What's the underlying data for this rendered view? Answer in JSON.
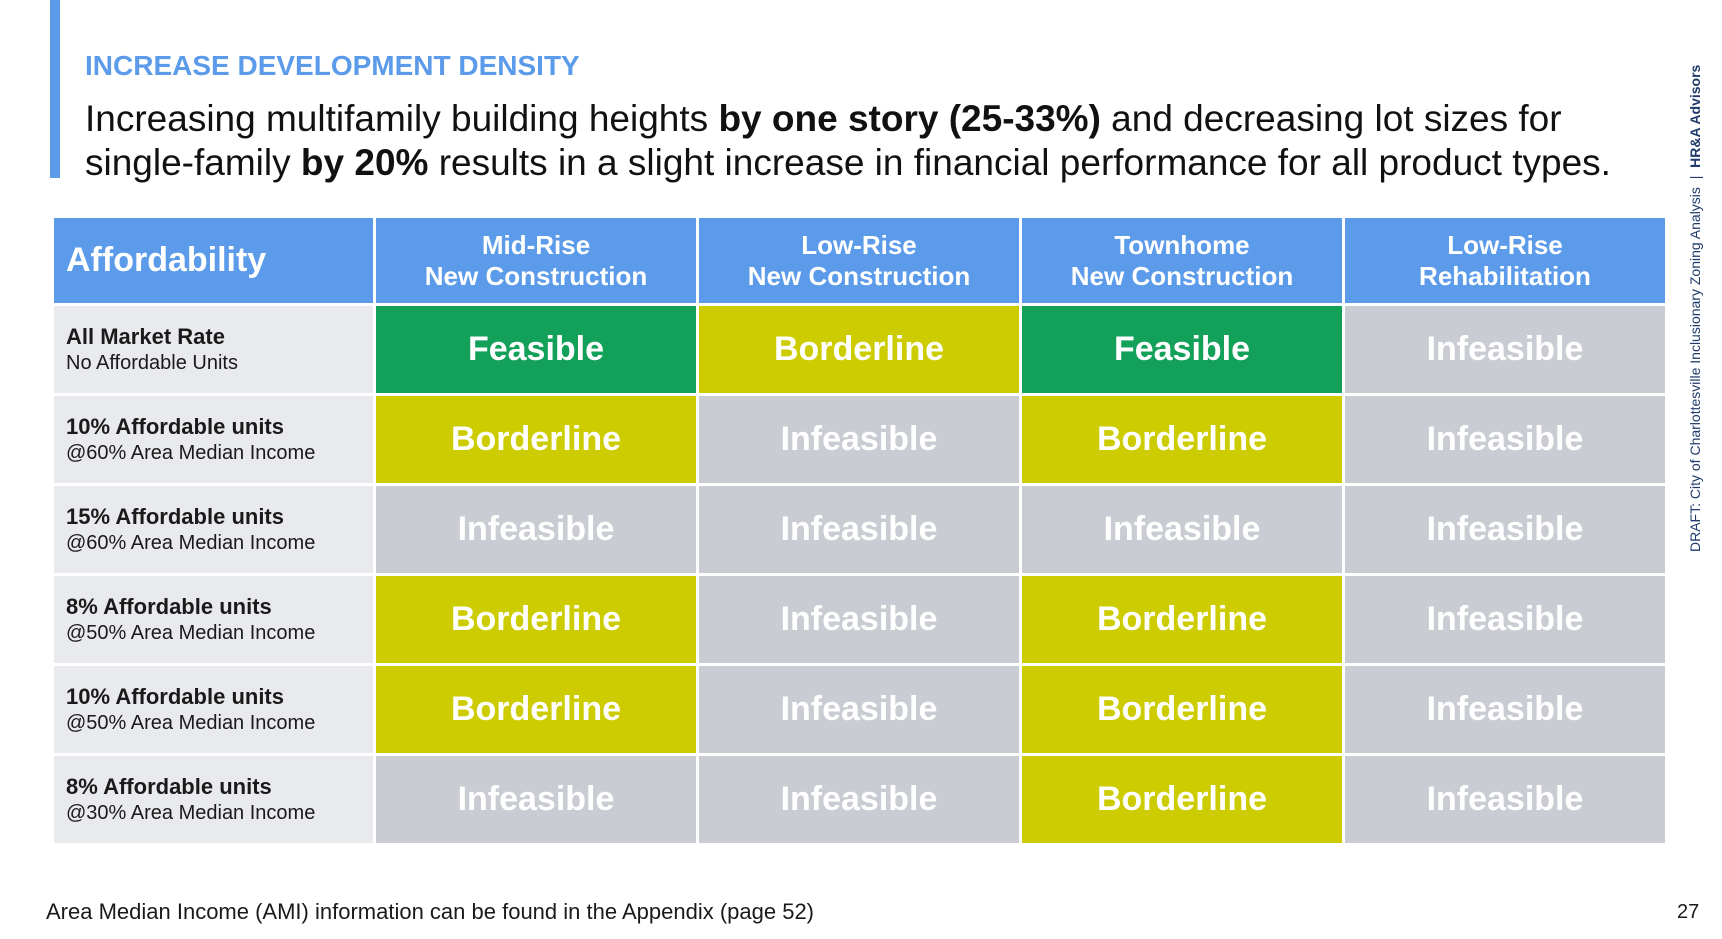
{
  "header": {
    "kicker": "INCREASE DEVELOPMENT DENSITY",
    "title_lines": [
      [
        {
          "text": "Increasing multifamily building heights ",
          "bold": false
        },
        {
          "text": "by one story (25-33%)",
          "bold": true
        },
        {
          "text": " and decreasing lot sizes for",
          "bold": false
        }
      ],
      [
        {
          "text": "single-family ",
          "bold": false
        },
        {
          "text": "by 20%",
          "bold": true
        },
        {
          "text": " results in a slight increase in financial performance for all product types.",
          "bold": false
        }
      ]
    ]
  },
  "table": {
    "corner": "Affordability",
    "columns": [
      [
        "Mid-Rise",
        "New Construction"
      ],
      [
        "Low-Rise",
        "New Construction"
      ],
      [
        "Townhome",
        "New Construction"
      ],
      [
        "Low-Rise",
        "Rehabilitation"
      ]
    ],
    "rows": [
      {
        "label": "All Market Rate",
        "sublabel": "No Affordable Units",
        "cells": [
          {
            "text": "Feasible",
            "color": "#13a15a"
          },
          {
            "text": "Borderline",
            "color": "#cccc00"
          },
          {
            "text": "Feasible",
            "color": "#13a15a"
          },
          {
            "text": "Infeasible",
            "color": "#c9ccd3"
          }
        ]
      },
      {
        "label": "10% Affordable units",
        "sublabel": "@60% Area Median Income",
        "cells": [
          {
            "text": "Borderline",
            "color": "#cccc00"
          },
          {
            "text": "Infeasible",
            "color": "#c9ccd3"
          },
          {
            "text": "Borderline",
            "color": "#cccc00"
          },
          {
            "text": "Infeasible",
            "color": "#c9ccd3"
          }
        ]
      },
      {
        "label": "15% Affordable units",
        "sublabel": "@60% Area Median Income",
        "cells": [
          {
            "text": "Infeasible",
            "color": "#c9ccd3"
          },
          {
            "text": "Infeasible",
            "color": "#c9ccd3"
          },
          {
            "text": "Infeasible",
            "color": "#c9ccd3"
          },
          {
            "text": "Infeasible",
            "color": "#c9ccd3"
          }
        ]
      },
      {
        "label": "8% Affordable units",
        "sublabel": "@50% Area Median Income",
        "cells": [
          {
            "text": "Borderline",
            "color": "#cccc00"
          },
          {
            "text": "Infeasible",
            "color": "#c9ccd3"
          },
          {
            "text": "Borderline",
            "color": "#cccc00"
          },
          {
            "text": "Infeasible",
            "color": "#c9ccd3"
          }
        ]
      },
      {
        "label": "10% Affordable units",
        "sublabel": "@50% Area Median Income",
        "cells": [
          {
            "text": "Borderline",
            "color": "#cccc00"
          },
          {
            "text": "Infeasible",
            "color": "#c9ccd3"
          },
          {
            "text": "Borderline",
            "color": "#cccc00"
          },
          {
            "text": "Infeasible",
            "color": "#c9ccd3"
          }
        ]
      },
      {
        "label": "8% Affordable units",
        "sublabel": "@30% Area Median Income",
        "cells": [
          {
            "text": "Infeasible",
            "color": "#c9ccd3"
          },
          {
            "text": "Infeasible",
            "color": "#c9ccd3"
          },
          {
            "text": "Borderline",
            "color": "#cccc00"
          },
          {
            "text": "Infeasible",
            "color": "#c9ccd3"
          }
        ]
      }
    ]
  },
  "footer": {
    "note": "Area Median Income (AMI) information can be found in the Appendix (page 52)",
    "page": "27"
  },
  "side": {
    "draft": "DRAFT: City of Charlottesville Inclusionary Zoning Analysis",
    "separator": "|",
    "org": "HR&A Advisors"
  }
}
